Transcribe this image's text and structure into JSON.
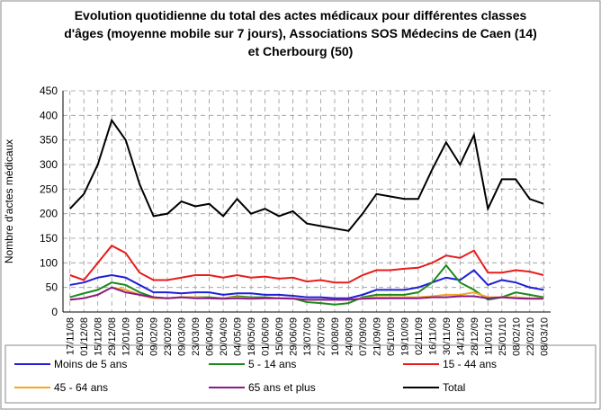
{
  "chart_data": {
    "type": "line",
    "title": [
      "Evolution quotidienne du total des actes médicaux pour différentes classes",
      "d'âges (moyenne mobile sur 7 jours), Associations SOS Médecins de Caen (14)",
      "et Cherbourg (50)"
    ],
    "y_label": "Nombre d'actes médicaux",
    "categories": [
      "17/11/08",
      "01/12/08",
      "15/12/08",
      "29/12/08",
      "12/01/09",
      "26/01/09",
      "09/02/09",
      "23/02/09",
      "09/03/09",
      "23/03/09",
      "06/04/09",
      "20/04/09",
      "04/05/09",
      "18/05/09",
      "01/06/09",
      "15/06/09",
      "29/06/09",
      "13/07/09",
      "27/07/09",
      "10/08/09",
      "24/08/09",
      "07/09/09",
      "21/09/09",
      "05/10/09",
      "19/10/09",
      "02/11/09",
      "16/11/09",
      "30/11/09",
      "14/12/09",
      "28/12/09",
      "11/01/10",
      "25/01/10",
      "08/02/10",
      "22/02/10",
      "08/03/10"
    ],
    "ylim": [
      0,
      450
    ],
    "yticks": [
      0,
      50,
      100,
      150,
      200,
      250,
      300,
      350,
      400,
      450
    ],
    "grid": true,
    "series": [
      {
        "name": "Moins de 5 ans",
        "color": "#1f1fd8",
        "values": [
          55,
          60,
          70,
          75,
          70,
          55,
          40,
          40,
          38,
          40,
          40,
          35,
          38,
          38,
          35,
          35,
          33,
          30,
          30,
          28,
          28,
          35,
          45,
          45,
          45,
          50,
          60,
          70,
          65,
          85,
          55,
          65,
          60,
          50,
          45
        ]
      },
      {
        "name": "5 - 14 ans",
        "color": "#1a8a1a",
        "values": [
          30,
          38,
          45,
          60,
          55,
          40,
          30,
          28,
          30,
          30,
          30,
          28,
          32,
          30,
          30,
          28,
          28,
          20,
          18,
          15,
          18,
          30,
          35,
          35,
          35,
          40,
          60,
          95,
          60,
          45,
          25,
          30,
          40,
          35,
          30
        ]
      },
      {
        "name": "15 - 44 ans",
        "color": "#e81c1c",
        "values": [
          75,
          65,
          100,
          135,
          120,
          80,
          65,
          65,
          70,
          75,
          75,
          70,
          75,
          70,
          72,
          68,
          70,
          62,
          65,
          60,
          60,
          75,
          85,
          85,
          88,
          90,
          100,
          115,
          110,
          125,
          80,
          80,
          85,
          82,
          75
        ]
      },
      {
        "name": "45 - 64 ans",
        "color": "#f5a623",
        "values": [
          25,
          28,
          35,
          50,
          45,
          35,
          28,
          28,
          30,
          30,
          28,
          28,
          30,
          28,
          28,
          28,
          28,
          25,
          25,
          25,
          25,
          28,
          30,
          30,
          30,
          30,
          32,
          35,
          35,
          40,
          30,
          30,
          30,
          28,
          28
        ]
      },
      {
        "name": "65 ans et plus",
        "color": "#8b1a8b",
        "values": [
          25,
          28,
          35,
          50,
          40,
          35,
          30,
          28,
          30,
          28,
          28,
          27,
          28,
          27,
          28,
          28,
          27,
          25,
          25,
          25,
          25,
          27,
          28,
          28,
          28,
          28,
          30,
          30,
          32,
          32,
          28,
          30,
          28,
          27,
          27
        ]
      },
      {
        "name": "Total",
        "color": "#000000",
        "values": [
          210,
          240,
          300,
          390,
          350,
          260,
          195,
          200,
          225,
          215,
          220,
          195,
          230,
          200,
          210,
          195,
          205,
          180,
          175,
          170,
          165,
          200,
          240,
          235,
          230,
          230,
          290,
          345,
          300,
          360,
          210,
          270,
          270,
          230,
          220
        ]
      }
    ]
  }
}
